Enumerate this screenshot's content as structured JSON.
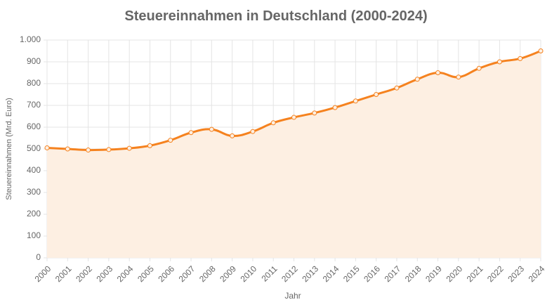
{
  "chart_data": {
    "type": "line",
    "title": "Steuereinnahmen in Deutschland (2000-2024)",
    "x_label": "Jahr",
    "y_label": "Steuereinnahmen (Mrd. Euro)",
    "categories": [
      "2000",
      "2001",
      "2002",
      "2003",
      "2004",
      "2005",
      "2006",
      "2007",
      "2008",
      "2009",
      "2010",
      "2011",
      "2012",
      "2013",
      "2014",
      "2015",
      "2016",
      "2017",
      "2018",
      "2019",
      "2020",
      "2021",
      "2022",
      "2023",
      "2024"
    ],
    "series": [
      {
        "name": "Steuereinnahmen",
        "color": "#f5821f",
        "values": [
          505,
          500,
          495,
          497,
          503,
          515,
          540,
          575,
          590,
          560,
          580,
          620,
          645,
          665,
          690,
          720,
          750,
          780,
          820,
          850,
          830,
          870,
          900,
          915,
          950
        ]
      }
    ],
    "fill": "#fdefe2",
    "ylim": [
      0,
      1000
    ],
    "yticks": [
      0,
      100,
      200,
      300,
      400,
      500,
      600,
      700,
      800,
      900,
      {
        "value": 1000,
        "label": "1.000"
      }
    ],
    "grid": true
  }
}
